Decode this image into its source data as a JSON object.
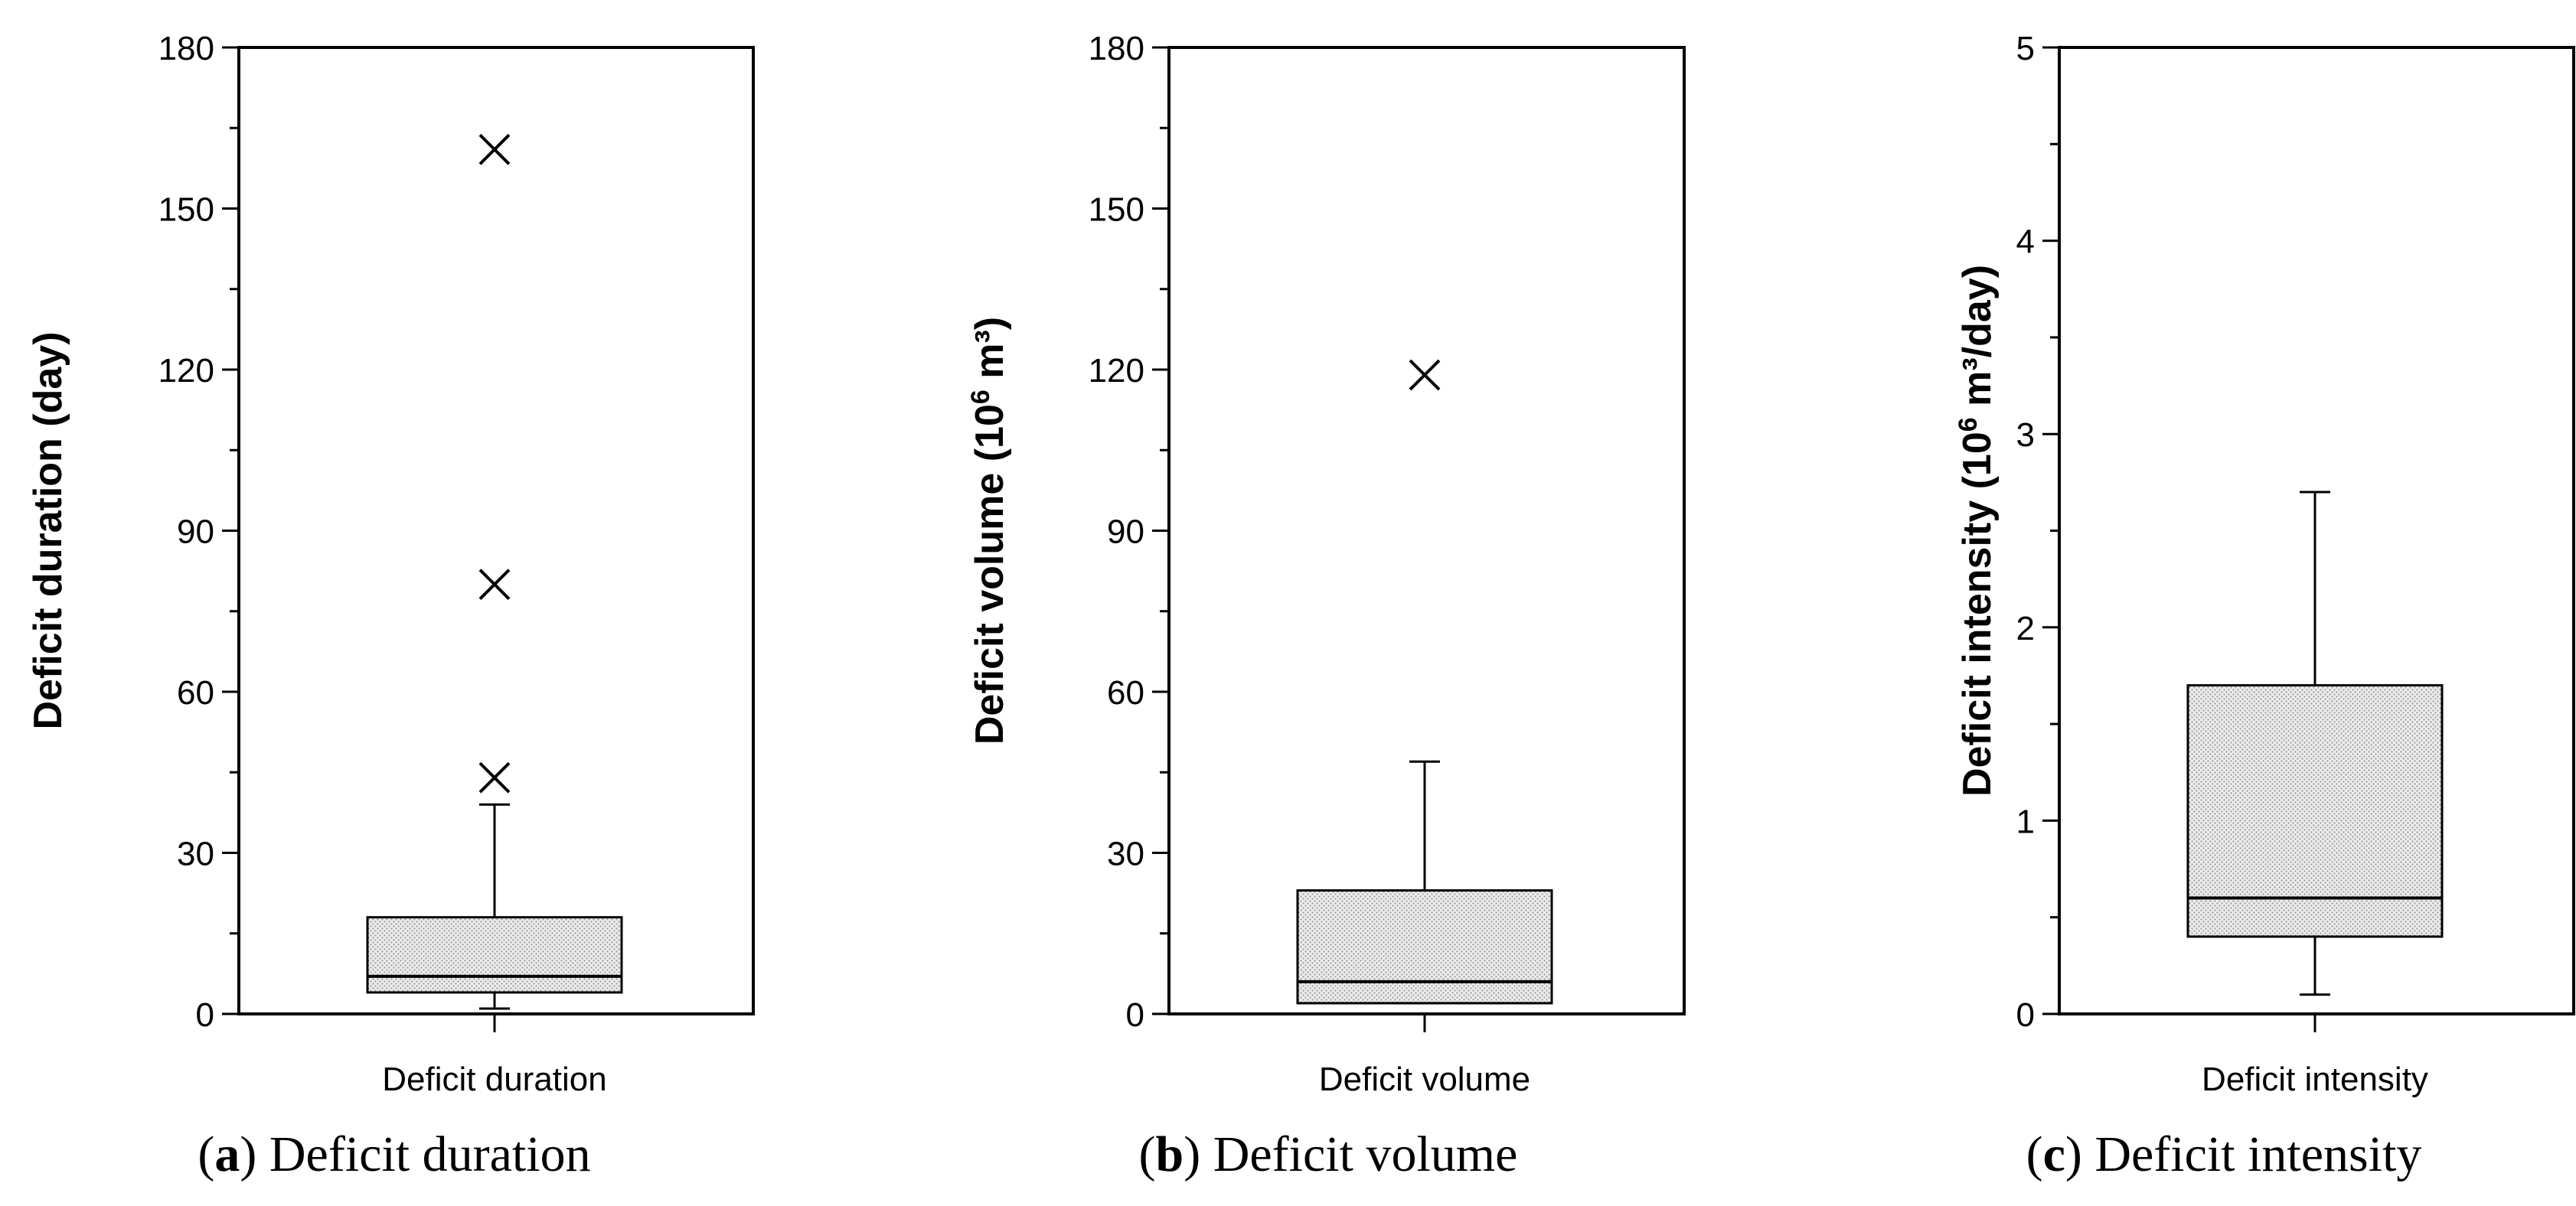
{
  "chart_data": [
    {
      "type": "box",
      "panel": "a",
      "caption_letter": "a",
      "caption_text": ") Deficit duration",
      "ylabel": "Deficit duration (day)",
      "ylabel_sup": "",
      "ylabel_tail": "",
      "ylim": [
        0,
        180
      ],
      "yticks": [
        0,
        30,
        60,
        90,
        120,
        150,
        180
      ],
      "category": "Deficit duration",
      "box": {
        "whisker_low": 1,
        "q1": 4,
        "median": 7,
        "q3": 18,
        "whisker_high": 39
      },
      "outliers": [
        44,
        80,
        161
      ],
      "fill": "#e0e0e0"
    },
    {
      "type": "box",
      "panel": "b",
      "caption_letter": "b",
      "caption_text": ") Deficit volume",
      "ylabel": "Deficit volume (10",
      "ylabel_sup": "6",
      "ylabel_tail": " m³)",
      "ylim": [
        0,
        180
      ],
      "yticks": [
        0,
        30,
        60,
        90,
        120,
        150,
        180
      ],
      "category": "Deficit volume",
      "box": {
        "whisker_low": 2,
        "q1": 2,
        "median": 6,
        "q3": 23,
        "whisker_high": 47
      },
      "outliers": [
        119
      ],
      "fill": "#e0e0e0"
    },
    {
      "type": "box",
      "panel": "c",
      "caption_letter": "c",
      "caption_text": ") Deficit intensity",
      "ylabel": "Deficit intensity (10",
      "ylabel_sup": "6",
      "ylabel_tail": " m³/day)",
      "ylim": [
        0,
        5
      ],
      "yticks": [
        0,
        1,
        2,
        3,
        4,
        5
      ],
      "category": "Deficit intensity",
      "box": {
        "whisker_low": 0.1,
        "q1": 0.4,
        "median": 0.6,
        "q3": 1.7,
        "whisker_high": 2.7
      },
      "outliers": [],
      "fill": "#e0e0e0"
    }
  ]
}
